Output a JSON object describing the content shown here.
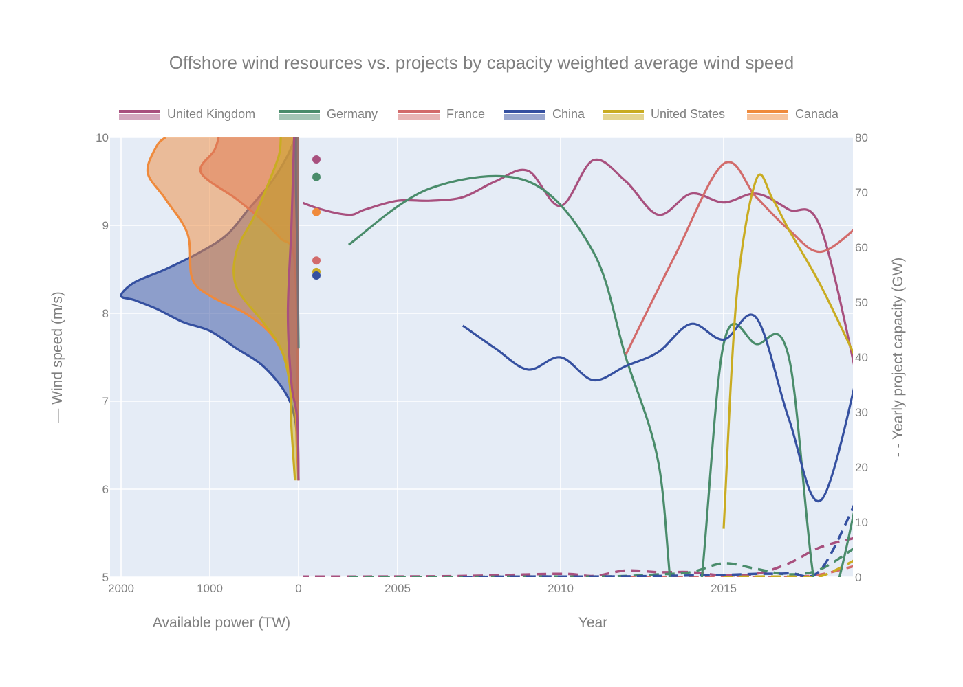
{
  "chart_data": {
    "title": "Offshore wind resources vs. projects by capacity weighted average wind speed",
    "colors": {
      "United Kingdom": "#a8507e",
      "Germany": "#4a8c6b",
      "France": "#d26b6b",
      "China": "#3550a0",
      "United States": "#c9ac22",
      "Canada": "#ef8a3c"
    },
    "legend": [
      "United Kingdom",
      "Germany",
      "France",
      "China",
      "United States",
      "Canada"
    ],
    "left_panel": {
      "type": "area",
      "xlabel": "Available power (TW)",
      "ylabel": "Wind speed (m/s)",
      "ylabel_prefix": "—",
      "xlim": [
        2000,
        0
      ],
      "ylim": [
        5,
        10
      ],
      "xticks": [
        "2000",
        "1000",
        "0"
      ],
      "yticks": [
        "5",
        "6",
        "7",
        "8",
        "9",
        "10"
      ],
      "series": [
        {
          "name": "China",
          "points": [
            [
              0,
              6.1
            ],
            [
              10,
              6.4
            ],
            [
              40,
              6.8
            ],
            [
              150,
              7.1
            ],
            [
              400,
              7.4
            ],
            [
              700,
              7.6
            ],
            [
              1000,
              7.8
            ],
            [
              1300,
              7.9
            ],
            [
              1600,
              8.05
            ],
            [
              1850,
              8.15
            ],
            [
              2000,
              8.2
            ],
            [
              1850,
              8.35
            ],
            [
              1500,
              8.5
            ],
            [
              1100,
              8.7
            ],
            [
              800,
              8.9
            ],
            [
              550,
              9.2
            ],
            [
              300,
              9.5
            ],
            [
              120,
              9.8
            ],
            [
              40,
              10
            ]
          ]
        },
        {
          "name": "France",
          "points": [
            [
              0,
              6.1
            ],
            [
              10,
              7.0
            ],
            [
              20,
              8.0
            ],
            [
              60,
              8.7
            ],
            [
              200,
              8.85
            ],
            [
              400,
              9.05
            ],
            [
              700,
              9.3
            ],
            [
              1100,
              9.6
            ],
            [
              950,
              9.85
            ],
            [
              900,
              10
            ]
          ]
        },
        {
          "name": "Canada",
          "points": [
            [
              0,
              6.1
            ],
            [
              20,
              6.5
            ],
            [
              40,
              7.0
            ],
            [
              120,
              7.4
            ],
            [
              300,
              7.75
            ],
            [
              600,
              8.0
            ],
            [
              1000,
              8.2
            ],
            [
              1200,
              8.4
            ],
            [
              1250,
              8.9
            ],
            [
              1500,
              9.3
            ],
            [
              1700,
              9.6
            ],
            [
              1600,
              9.9
            ],
            [
              1500,
              10
            ]
          ]
        },
        {
          "name": "United States",
          "points": [
            [
              40,
              6.1
            ],
            [
              80,
              6.7
            ],
            [
              100,
              7.2
            ],
            [
              200,
              7.6
            ],
            [
              400,
              7.9
            ],
            [
              700,
              8.3
            ],
            [
              700,
              8.7
            ],
            [
              500,
              9.1
            ],
            [
              330,
              9.5
            ],
            [
              220,
              9.8
            ],
            [
              200,
              10
            ]
          ]
        },
        {
          "name": "Germany",
          "points": [
            [
              0,
              7.6
            ],
            [
              10,
              8.5
            ],
            [
              20,
              9.0
            ],
            [
              30,
              9.5
            ],
            [
              30,
              10
            ]
          ]
        },
        {
          "name": "United Kingdom",
          "points": [
            [
              0,
              6.1
            ],
            [
              15,
              6.8
            ],
            [
              80,
              7.2
            ],
            [
              120,
              8.0
            ],
            [
              80,
              9.0
            ],
            [
              50,
              10
            ]
          ]
        }
      ]
    },
    "right_panel": {
      "type": "line",
      "xlabel": "Year",
      "ylabel_left": "Wind speed (m/s)",
      "ylabel_right": "Yearly project capacity (GW)",
      "ylabel_right_prefix": "- -",
      "xlim": [
        2000.5,
        2019.3
      ],
      "ylim_left": [
        5,
        10
      ],
      "ylim_right": [
        0,
        80
      ],
      "xticks": [
        "2005",
        "2010",
        "2015"
      ],
      "y2ticks": [
        "0",
        "10",
        "20",
        "30",
        "40",
        "50",
        "60",
        "70",
        "80"
      ],
      "resource_markers": [
        {
          "name": "United Kingdom",
          "value": 9.75
        },
        {
          "name": "Germany",
          "value": 9.55
        },
        {
          "name": "Canada",
          "value": 9.15
        },
        {
          "name": "France",
          "value": 8.6
        },
        {
          "name": "United States",
          "value": 8.47
        },
        {
          "name": "China",
          "value": 8.43
        }
      ],
      "speed_series": [
        {
          "name": "United Kingdom",
          "x": [
            2001.5,
            2002.5,
            2003.5,
            2004,
            2005,
            2006,
            2007,
            2008,
            2009,
            2010,
            2011,
            2012,
            2013,
            2014,
            2015,
            2016,
            2017,
            2018,
            2019.3
          ],
          "y": [
            9.35,
            9.2,
            9.12,
            9.18,
            9.28,
            9.28,
            9.32,
            9.5,
            9.62,
            9.22,
            9.74,
            9.5,
            9.12,
            9.36,
            9.26,
            9.36,
            9.18,
            8.95,
            6.9
          ]
        },
        {
          "name": "Germany",
          "x": [
            2003.5,
            2006,
            2009,
            2011,
            2012,
            2013,
            2013.5,
            2014.2,
            2015,
            2016,
            2017,
            2018,
            2019.3
          ],
          "y": [
            8.78,
            9.42,
            9.5,
            8.7,
            7.5,
            6.3,
            4.6,
            4.6,
            7.65,
            7.65,
            7.5,
            4.6,
            6.25
          ]
        },
        {
          "name": "France",
          "x": [
            2012,
            2013.5,
            2015,
            2016,
            2017,
            2018,
            2019.3
          ],
          "y": [
            7.53,
            8.65,
            9.7,
            9.32,
            8.95,
            8.7,
            9.05
          ]
        },
        {
          "name": "China",
          "x": [
            2007,
            2008,
            2009,
            2010,
            2011,
            2012,
            2013,
            2014,
            2015,
            2016,
            2017,
            2018,
            2019.3
          ],
          "y": [
            7.86,
            7.6,
            7.36,
            7.5,
            7.24,
            7.4,
            7.56,
            7.88,
            7.7,
            7.95,
            6.8,
            5.88,
            7.62
          ]
        },
        {
          "name": "United States",
          "x": [
            2015,
            2015.4,
            2016,
            2016.5,
            2017,
            2018,
            2019.3
          ],
          "y": [
            5.55,
            8.2,
            9.52,
            9.3,
            8.95,
            8.3,
            7.3
          ]
        }
      ],
      "capacity_series": [
        {
          "name": "United Kingdom",
          "x": [
            2001.5,
            2004,
            2007,
            2010,
            2011,
            2012,
            2013,
            2014,
            2015,
            2016,
            2017,
            2018,
            2019.3
          ],
          "y": [
            0.1,
            0.1,
            0.2,
            0.6,
            0.2,
            1.2,
            0.9,
            0.9,
            0.3,
            0.6,
            2.5,
            5.5,
            7.5
          ]
        },
        {
          "name": "Germany",
          "x": [
            2003.5,
            2006,
            2009,
            2011,
            2012,
            2013,
            2014,
            2015,
            2016,
            2017,
            2018,
            2019.3
          ],
          "y": [
            0,
            0,
            0.1,
            0.1,
            0.2,
            0.5,
            0.9,
            2.5,
            1.5,
            0.5,
            1.5,
            6.5
          ]
        },
        {
          "name": "France",
          "x": [
            2012,
            2013,
            2014,
            2015,
            2016,
            2017,
            2018,
            2019.3
          ],
          "y": [
            0,
            0,
            0,
            0,
            0,
            0,
            0.5,
            2.5
          ]
        },
        {
          "name": "China",
          "x": [
            2007,
            2009,
            2011,
            2013,
            2015,
            2016,
            2017,
            2018,
            2019.3
          ],
          "y": [
            0,
            0.1,
            0.1,
            0.2,
            0.4,
            0.6,
            0.7,
            1.5,
            17
          ]
        },
        {
          "name": "United States",
          "x": [
            2015,
            2016,
            2017,
            2018,
            2019.3
          ],
          "y": [
            0,
            0.1,
            0.1,
            0.2,
            4
          ]
        }
      ]
    }
  }
}
